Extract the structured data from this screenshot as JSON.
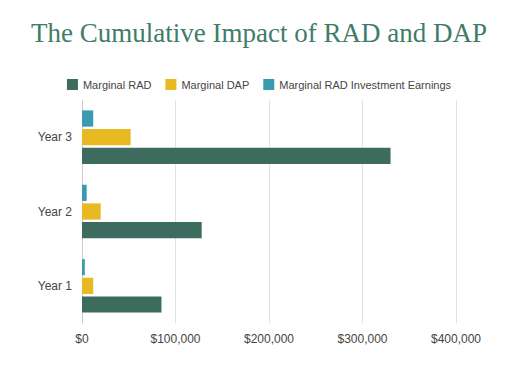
{
  "chart_data": {
    "type": "bar",
    "orientation": "horizontal",
    "title": "The Cumulative Impact of RAD and DAP",
    "categories": [
      "Year 1",
      "Year 2",
      "Year 3"
    ],
    "series": [
      {
        "name": "Marginal RAD",
        "color": "#3d6b5e",
        "values": [
          85000,
          128000,
          330000
        ]
      },
      {
        "name": "Marginal DAP",
        "color": "#e8b923",
        "values": [
          12000,
          20000,
          52000
        ]
      },
      {
        "name": "Marginal RAD Investment Earnings",
        "color": "#3a9ab0",
        "values": [
          3000,
          5000,
          12000
        ]
      }
    ],
    "xlim": [
      0,
      400000
    ],
    "xticks": [
      {
        "value": 0,
        "label": "$0"
      },
      {
        "value": 100000,
        "label": "$100,000"
      },
      {
        "value": 200000,
        "label": "$200,000"
      },
      {
        "value": 300000,
        "label": "$300,000"
      },
      {
        "value": 400000,
        "label": "$400,000"
      }
    ],
    "grid": true,
    "legend": "top"
  }
}
